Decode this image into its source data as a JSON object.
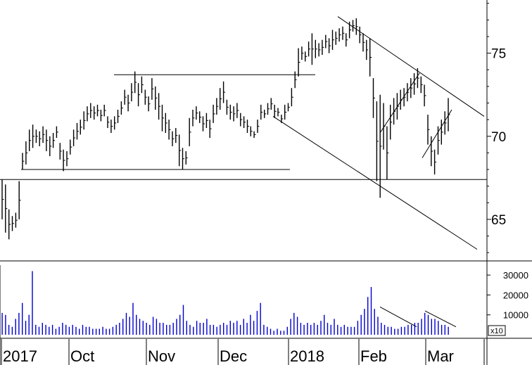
{
  "chart_data": [
    {
      "type": "ohlc",
      "title": "",
      "xlabel": "",
      "ylabel": "",
      "y_axis_side": "right",
      "ylim": [
        62.5,
        78.2
      ],
      "yticks": [
        65,
        70,
        75
      ],
      "ytick_labels": [
        "65",
        "70",
        "75"
      ],
      "grid": false,
      "bar_color": "#000000",
      "series": [
        {
          "values": [
            {
              "h": 67.4,
              "l": 65.0
            },
            {
              "h": 67.1,
              "l": 64.2
            },
            {
              "h": 65.6,
              "l": 63.8
            },
            {
              "h": 65.2,
              "l": 64.3
            },
            {
              "h": 65.4,
              "l": 64.5
            },
            {
              "h": 67.3,
              "l": 65.0
            },
            {
              "h": 69.0,
              "l": 68.0
            },
            {
              "h": 69.7,
              "l": 68.3
            },
            {
              "h": 70.4,
              "l": 69.1
            },
            {
              "h": 70.7,
              "l": 69.3
            },
            {
              "h": 70.4,
              "l": 69.6
            },
            {
              "h": 70.3,
              "l": 69.4
            },
            {
              "h": 70.6,
              "l": 69.6
            },
            {
              "h": 70.4,
              "l": 69.1
            },
            {
              "h": 70.0,
              "l": 68.8
            },
            {
              "h": 70.2,
              "l": 69.3
            },
            {
              "h": 70.6,
              "l": 69.9
            },
            {
              "h": 69.6,
              "l": 68.6
            },
            {
              "h": 69.2,
              "l": 67.9
            },
            {
              "h": 69.1,
              "l": 68.2
            },
            {
              "h": 69.8,
              "l": 68.9
            },
            {
              "h": 70.4,
              "l": 69.4
            },
            {
              "h": 70.8,
              "l": 69.8
            },
            {
              "h": 71.0,
              "l": 70.1
            },
            {
              "h": 71.5,
              "l": 70.4
            },
            {
              "h": 71.8,
              "l": 70.9
            },
            {
              "h": 72.0,
              "l": 71.1
            },
            {
              "h": 71.8,
              "l": 71.0
            },
            {
              "h": 71.9,
              "l": 71.2
            },
            {
              "h": 71.6,
              "l": 70.9
            },
            {
              "h": 71.9,
              "l": 71.2
            },
            {
              "h": 71.2,
              "l": 70.5
            },
            {
              "h": 71.0,
              "l": 70.2
            },
            {
              "h": 71.2,
              "l": 70.4
            },
            {
              "h": 71.6,
              "l": 70.8
            },
            {
              "h": 72.1,
              "l": 71.3
            },
            {
              "h": 72.8,
              "l": 71.9
            },
            {
              "h": 72.5,
              "l": 71.5
            },
            {
              "h": 73.2,
              "l": 72.1
            },
            {
              "h": 73.9,
              "l": 72.6
            },
            {
              "h": 73.2,
              "l": 71.8
            },
            {
              "h": 73.6,
              "l": 72.6
            },
            {
              "h": 72.8,
              "l": 71.9
            },
            {
              "h": 72.4,
              "l": 71.5
            },
            {
              "h": 73.5,
              "l": 72.2
            },
            {
              "h": 73.0,
              "l": 71.6
            },
            {
              "h": 72.6,
              "l": 71.0
            },
            {
              "h": 71.9,
              "l": 70.3
            },
            {
              "h": 71.4,
              "l": 70.2
            },
            {
              "h": 71.0,
              "l": 69.8
            },
            {
              "h": 70.3,
              "l": 69.4
            },
            {
              "h": 70.5,
              "l": 69.6
            },
            {
              "h": 70.1,
              "l": 68.2
            },
            {
              "h": 69.3,
              "l": 68.0
            },
            {
              "h": 69.1,
              "l": 68.3
            },
            {
              "h": 71.1,
              "l": 69.4
            },
            {
              "h": 71.6,
              "l": 70.6
            },
            {
              "h": 71.8,
              "l": 71.0
            },
            {
              "h": 71.5,
              "l": 70.8
            },
            {
              "h": 71.2,
              "l": 70.3
            },
            {
              "h": 71.4,
              "l": 70.5
            },
            {
              "h": 71.0,
              "l": 69.9
            },
            {
              "h": 71.9,
              "l": 70.8
            },
            {
              "h": 72.3,
              "l": 71.3
            },
            {
              "h": 72.9,
              "l": 71.6
            },
            {
              "h": 73.3,
              "l": 72.0
            },
            {
              "h": 72.2,
              "l": 71.3
            },
            {
              "h": 71.9,
              "l": 71.0
            },
            {
              "h": 71.8,
              "l": 70.9
            },
            {
              "h": 72.0,
              "l": 71.1
            },
            {
              "h": 71.4,
              "l": 70.6
            },
            {
              "h": 71.2,
              "l": 70.5
            },
            {
              "h": 71.0,
              "l": 70.2
            },
            {
              "h": 70.6,
              "l": 70.0
            },
            {
              "h": 70.3,
              "l": 69.9
            },
            {
              "h": 71.0,
              "l": 70.2
            },
            {
              "h": 71.9,
              "l": 71.0
            },
            {
              "h": 71.6,
              "l": 71.1
            },
            {
              "h": 72.0,
              "l": 71.3
            },
            {
              "h": 72.3,
              "l": 71.6
            },
            {
              "h": 71.9,
              "l": 71.1
            },
            {
              "h": 71.7,
              "l": 71.2
            },
            {
              "h": 71.3,
              "l": 70.8
            },
            {
              "h": 71.9,
              "l": 71.0
            },
            {
              "h": 72.0,
              "l": 71.5
            },
            {
              "h": 72.9,
              "l": 71.8
            },
            {
              "h": 73.9,
              "l": 72.9
            },
            {
              "h": 75.3,
              "l": 73.6
            },
            {
              "h": 75.4,
              "l": 74.6
            },
            {
              "h": 75.1,
              "l": 74.5
            },
            {
              "h": 75.7,
              "l": 74.8
            },
            {
              "h": 76.2,
              "l": 74.3
            },
            {
              "h": 75.8,
              "l": 74.7
            },
            {
              "h": 75.6,
              "l": 74.8
            },
            {
              "h": 75.8,
              "l": 74.9
            },
            {
              "h": 76.1,
              "l": 75.3
            },
            {
              "h": 75.9,
              "l": 75.0
            },
            {
              "h": 76.4,
              "l": 75.2
            },
            {
              "h": 76.3,
              "l": 75.5
            },
            {
              "h": 76.5,
              "l": 75.7
            },
            {
              "h": 76.6,
              "l": 75.8
            },
            {
              "h": 76.2,
              "l": 75.4
            },
            {
              "h": 76.9,
              "l": 75.9
            },
            {
              "h": 77.0,
              "l": 76.3
            },
            {
              "h": 77.1,
              "l": 76.1
            },
            {
              "h": 76.6,
              "l": 75.6
            },
            {
              "h": 76.2,
              "l": 75.1
            },
            {
              "h": 75.8,
              "l": 74.6
            },
            {
              "h": 75.9,
              "l": 73.6
            },
            {
              "h": 73.5,
              "l": 71.1
            },
            {
              "h": 72.1,
              "l": 67.3
            },
            {
              "h": 72.5,
              "l": 66.3
            },
            {
              "h": 72.0,
              "l": 69.2
            },
            {
              "h": 70.6,
              "l": 67.4
            },
            {
              "h": 71.9,
              "l": 69.8
            },
            {
              "h": 72.3,
              "l": 70.7
            },
            {
              "h": 72.6,
              "l": 71.0
            },
            {
              "h": 72.8,
              "l": 71.6
            },
            {
              "h": 72.9,
              "l": 71.8
            },
            {
              "h": 73.2,
              "l": 72.1
            },
            {
              "h": 73.5,
              "l": 72.3
            },
            {
              "h": 73.8,
              "l": 72.5
            },
            {
              "h": 74.1,
              "l": 72.9
            },
            {
              "h": 73.6,
              "l": 72.6
            },
            {
              "h": 73.1,
              "l": 71.8
            },
            {
              "h": 71.3,
              "l": 69.5
            },
            {
              "h": 70.0,
              "l": 68.2
            },
            {
              "h": 69.2,
              "l": 67.7
            },
            {
              "h": 70.6,
              "l": 68.9
            },
            {
              "h": 71.0,
              "l": 69.5
            },
            {
              "h": 71.5,
              "l": 70.1
            },
            {
              "h": 72.3,
              "l": 70.3
            }
          ]
        }
      ]
    },
    {
      "type": "bar",
      "title": "",
      "xlabel": "",
      "ylabel": "",
      "y_axis_side": "right",
      "ylim": [
        0,
        35000
      ],
      "yticks": [
        10000,
        20000,
        30000
      ],
      "ytick_labels": [
        "10000",
        "20000",
        "30000"
      ],
      "unit_label": "x10",
      "bar_color": "#0000cc",
      "x_tick_labels": [
        "2017",
        "Oct",
        "Nov",
        "Dec",
        "2018",
        "Feb",
        "Mar"
      ],
      "values": [
        11000,
        10000,
        5000,
        4000,
        8000,
        11000,
        16000,
        7000,
        10000,
        32000,
        5000,
        4000,
        6000,
        5000,
        4000,
        5000,
        3000,
        4000,
        6000,
        5000,
        4000,
        5000,
        4000,
        3000,
        5000,
        4000,
        4000,
        3000,
        3000,
        3000,
        4000,
        3000,
        3000,
        4000,
        5000,
        6000,
        8000,
        11000,
        9000,
        16000,
        10000,
        8000,
        7000,
        6000,
        5000,
        9000,
        8000,
        6000,
        6000,
        5000,
        5000,
        6000,
        8000,
        10000,
        15000,
        7000,
        5000,
        4000,
        7000,
        6000,
        6000,
        8000,
        5000,
        5000,
        4000,
        5000,
        6000,
        5000,
        7000,
        6000,
        7000,
        5000,
        8000,
        6000,
        10000,
        7000,
        12000,
        16000,
        5000,
        4000,
        3000,
        2000,
        3000,
        2000,
        2000,
        4000,
        8000,
        11000,
        9000,
        6000,
        5000,
        6000,
        5000,
        6000,
        5000,
        7000,
        10000,
        6000,
        5000,
        8000,
        5000,
        4000,
        5000,
        4000,
        4000,
        4000,
        7000,
        10000,
        13000,
        19000,
        24000,
        13000,
        9000,
        6000,
        5000,
        4000,
        4000,
        3000,
        3000,
        4000,
        4000,
        5000,
        5000,
        6000,
        6000,
        8000,
        11000,
        10000,
        8000,
        8000,
        7000,
        5000,
        5000,
        4000
      ]
    }
  ]
}
